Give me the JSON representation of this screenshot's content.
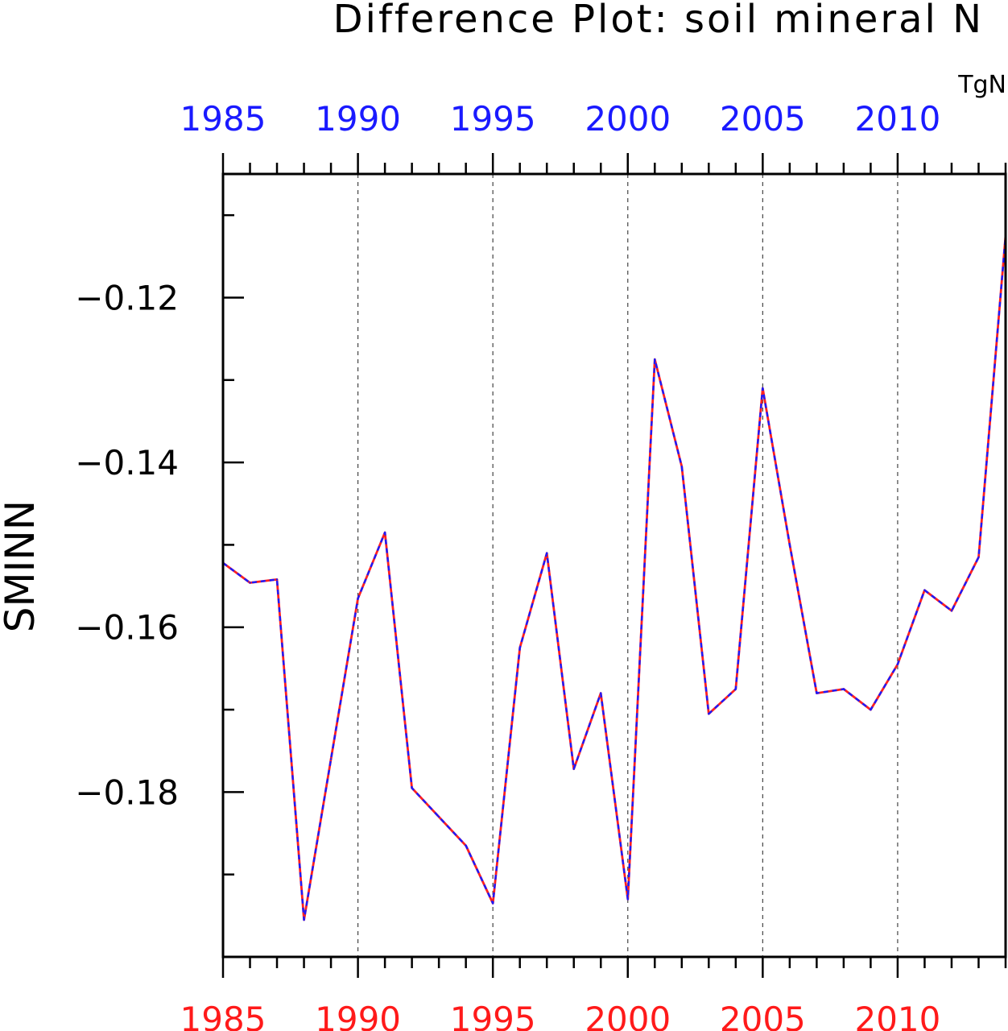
{
  "chart_data": {
    "type": "line",
    "title": "Difference Plot: soil mineral N",
    "units": "TgN",
    "ylabel": "SMINN",
    "xlabel": "",
    "xlim": [
      1985,
      2014
    ],
    "ylim": [
      -0.2,
      -0.105
    ],
    "x_ticks": [
      "1985",
      "1990",
      "1995",
      "2000",
      "2005",
      "2010"
    ],
    "y_ticks": [
      "−0.12",
      "−0.14",
      "−0.16",
      "−0.18"
    ],
    "y_tick_values": [
      -0.12,
      -0.14,
      -0.16,
      -0.18
    ],
    "grid": "vertical dashed at major x ticks",
    "x": [
      1985,
      1986,
      1987,
      1988,
      1989,
      1990,
      1991,
      1992,
      1993,
      1994,
      1995,
      1996,
      1997,
      1998,
      1999,
      2000,
      2001,
      2002,
      2003,
      2004,
      2005,
      2006,
      2007,
      2008,
      2009,
      2010,
      2011,
      2012,
      2013,
      2014
    ],
    "series": [
      {
        "color": "#ff2020",
        "style": "solid",
        "values": [
          -0.1522,
          -0.1546,
          -0.1542,
          -0.1955,
          -0.176,
          -0.1565,
          -0.1485,
          -0.1795,
          -0.183,
          -0.1865,
          -0.1935,
          -0.1625,
          -0.151,
          -0.1772,
          -0.168,
          -0.193,
          -0.1275,
          -0.1405,
          -0.1705,
          -0.1675,
          -0.131,
          -0.15,
          -0.168,
          -0.1675,
          -0.17,
          -0.1645,
          -0.1555,
          -0.158,
          -0.1515,
          -0.1125
        ]
      },
      {
        "color": "#1a1aff",
        "style": "dashed",
        "values": [
          -0.1522,
          -0.1546,
          -0.1542,
          -0.1955,
          -0.176,
          -0.1565,
          -0.1485,
          -0.1795,
          -0.183,
          -0.1865,
          -0.1935,
          -0.1625,
          -0.151,
          -0.1772,
          -0.168,
          -0.193,
          -0.1275,
          -0.1405,
          -0.1705,
          -0.1675,
          -0.131,
          -0.15,
          -0.168,
          -0.1675,
          -0.17,
          -0.1645,
          -0.1555,
          -0.158,
          -0.1515,
          -0.1125
        ]
      }
    ]
  }
}
